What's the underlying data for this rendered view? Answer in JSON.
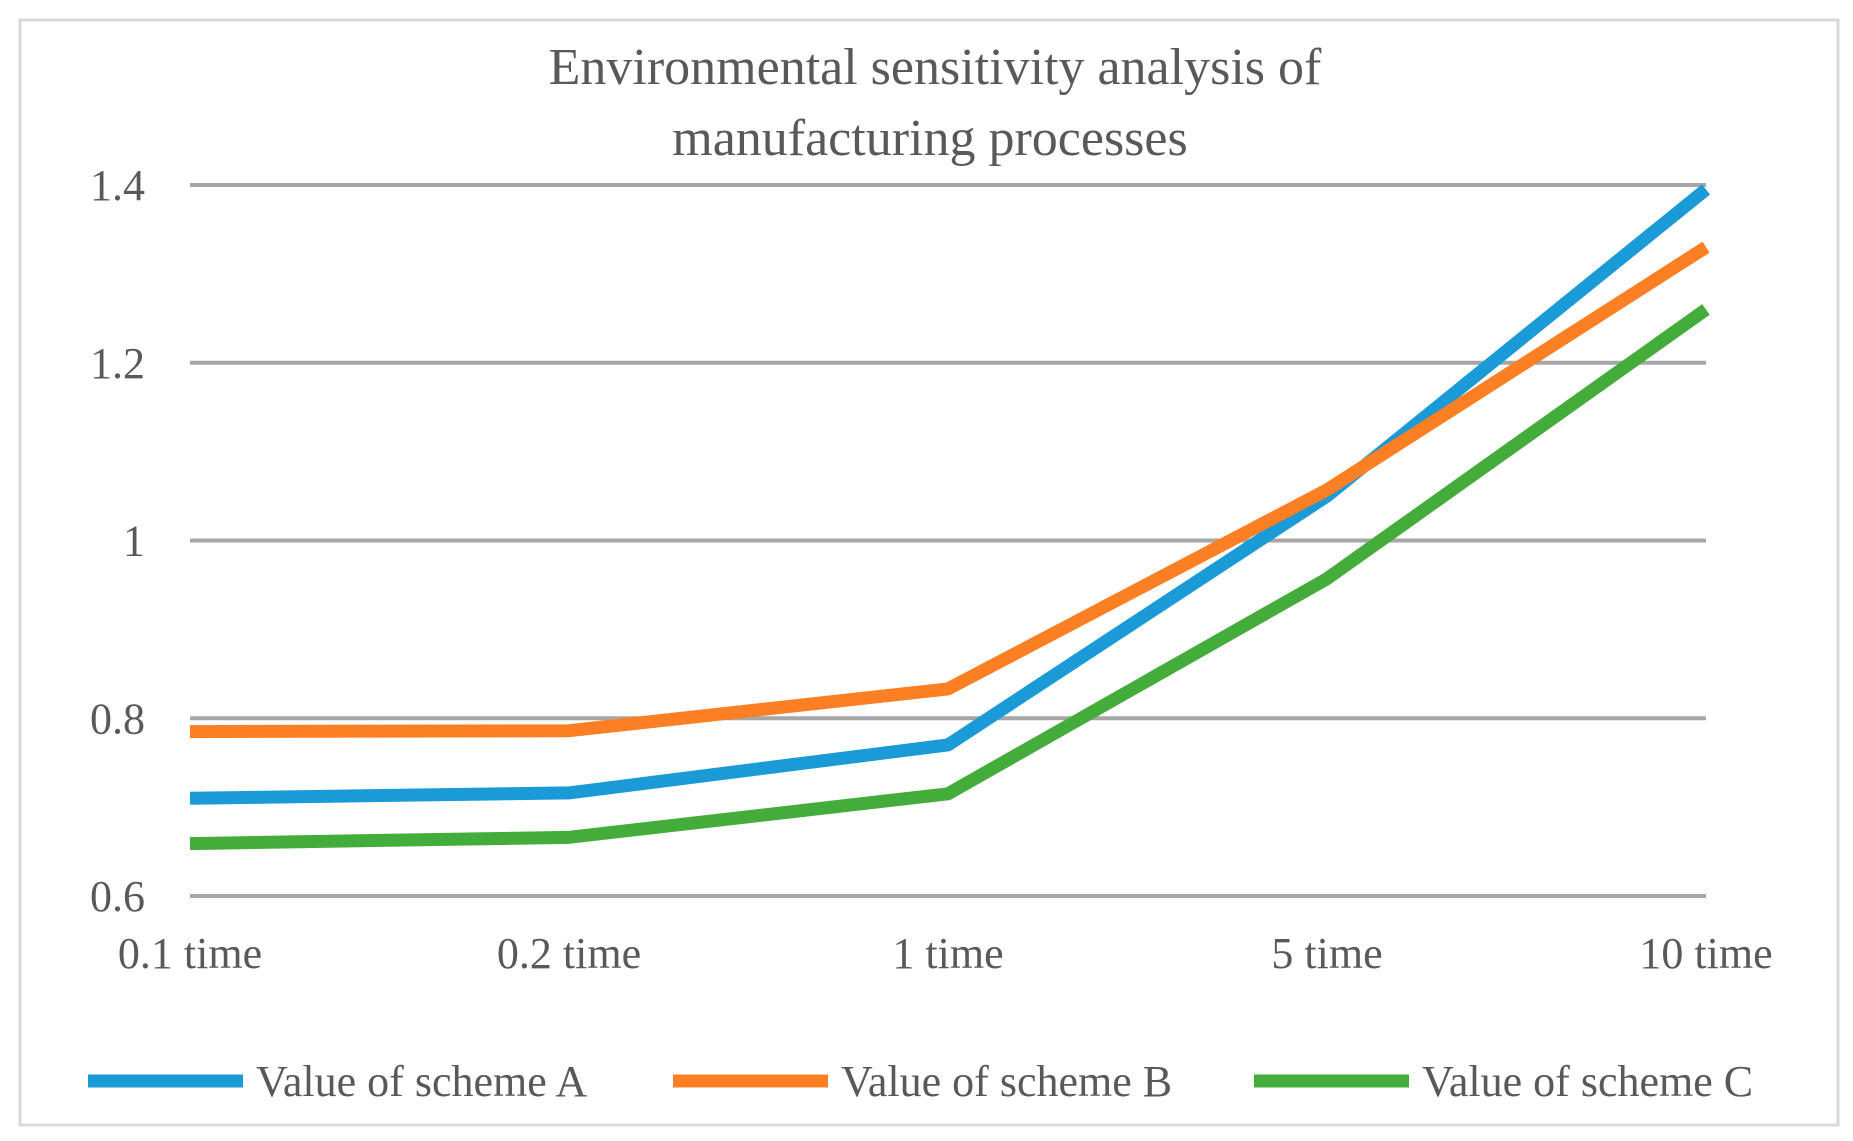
{
  "chart_data": {
    "type": "line",
    "title": [
      "Environmental  sensitivity   analysis  of",
      "manufacturing processes"
    ],
    "xlabel": "",
    "ylabel": "",
    "categories": [
      "0.1 time",
      "0.2 time",
      "1 time",
      "5 time",
      "10 time"
    ],
    "ylim": [
      0.6,
      1.4
    ],
    "yticks": [
      "0.6",
      "0.8",
      "1",
      "1.2",
      "1.4"
    ],
    "ytick_values": [
      0.6,
      0.8,
      1.0,
      1.2,
      1.4
    ],
    "grid": true,
    "legend_position": "bottom",
    "series": [
      {
        "name": "Value of scheme A",
        "color": "#1a9ad6",
        "values": [
          0.71,
          0.716,
          0.77,
          1.05,
          1.395
        ]
      },
      {
        "name": "Value of scheme B",
        "color": "#fd7f23",
        "values": [
          0.785,
          0.786,
          0.833,
          1.057,
          1.33
        ]
      },
      {
        "name": "Value of scheme C",
        "color": "#43ac3a",
        "values": [
          0.659,
          0.666,
          0.715,
          0.957,
          1.26
        ]
      }
    ]
  }
}
